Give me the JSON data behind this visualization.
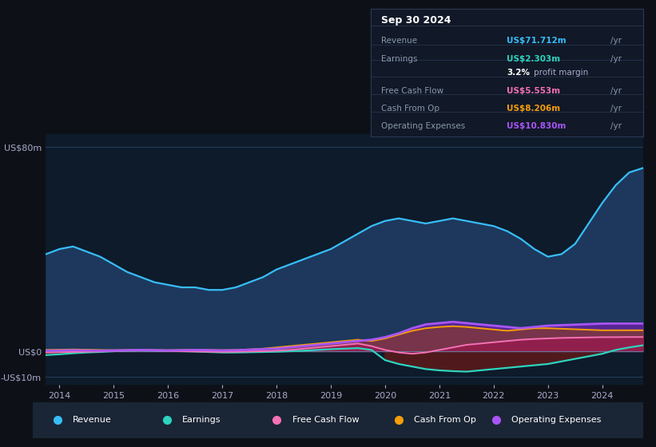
{
  "bg_color": "#0d1117",
  "plot_bg_color": "#0d1b2a",
  "title_date": "Sep 30 2024",
  "years": [
    2013.75,
    2014.0,
    2014.25,
    2014.5,
    2014.75,
    2015.0,
    2015.25,
    2015.5,
    2015.75,
    2016.0,
    2016.25,
    2016.5,
    2016.75,
    2017.0,
    2017.25,
    2017.5,
    2017.75,
    2018.0,
    2018.25,
    2018.5,
    2018.75,
    2019.0,
    2019.25,
    2019.5,
    2019.75,
    2020.0,
    2020.25,
    2020.5,
    2020.75,
    2021.0,
    2021.25,
    2021.5,
    2021.75,
    2022.0,
    2022.25,
    2022.5,
    2022.75,
    2023.0,
    2023.25,
    2023.5,
    2023.75,
    2024.0,
    2024.25,
    2024.5,
    2024.75
  ],
  "revenue": [
    38,
    40,
    41,
    39,
    37,
    34,
    31,
    29,
    27,
    26,
    25,
    25,
    24,
    24,
    25,
    27,
    29,
    32,
    34,
    36,
    38,
    40,
    43,
    46,
    49,
    51,
    52,
    51,
    50,
    51,
    52,
    51,
    50,
    49,
    47,
    44,
    40,
    37,
    38,
    42,
    50,
    58,
    65,
    70,
    71.712
  ],
  "earnings": [
    -1.5,
    -1.2,
    -0.8,
    -0.5,
    -0.3,
    0.0,
    0.2,
    0.3,
    0.2,
    0.1,
    0.0,
    -0.1,
    -0.3,
    -0.5,
    -0.5,
    -0.4,
    -0.3,
    -0.2,
    0.0,
    0.2,
    0.5,
    0.8,
    1.0,
    1.2,
    0.5,
    -3.5,
    -5.0,
    -6.0,
    -7.0,
    -7.5,
    -7.8,
    -8.0,
    -7.5,
    -7.0,
    -6.5,
    -6.0,
    -5.5,
    -5.0,
    -4.0,
    -3.0,
    -2.0,
    -1.0,
    0.5,
    1.5,
    2.303
  ],
  "free_cash_flow": [
    -0.5,
    -0.4,
    -0.3,
    -0.2,
    -0.1,
    0.1,
    0.2,
    0.3,
    0.2,
    0.1,
    0.0,
    -0.1,
    -0.2,
    -0.3,
    -0.2,
    -0.1,
    0.0,
    0.2,
    0.5,
    1.0,
    1.5,
    2.0,
    2.5,
    3.0,
    2.0,
    0.5,
    -0.5,
    -1.0,
    -0.5,
    0.5,
    1.5,
    2.5,
    3.0,
    3.5,
    4.0,
    4.5,
    4.8,
    5.0,
    5.2,
    5.3,
    5.4,
    5.5,
    5.5,
    5.553,
    5.553
  ],
  "cash_from_op": [
    0.5,
    0.6,
    0.7,
    0.6,
    0.5,
    0.4,
    0.5,
    0.6,
    0.5,
    0.4,
    0.5,
    0.6,
    0.5,
    0.4,
    0.5,
    0.7,
    1.0,
    1.5,
    2.0,
    2.5,
    3.0,
    3.5,
    4.0,
    4.5,
    4.0,
    5.0,
    6.5,
    8.0,
    9.0,
    9.5,
    9.8,
    9.5,
    9.0,
    8.5,
    8.0,
    8.5,
    9.0,
    9.0,
    8.8,
    8.6,
    8.4,
    8.2,
    8.2,
    8.206,
    8.206
  ],
  "operating_expenses": [
    0.2,
    0.3,
    0.4,
    0.3,
    0.2,
    0.3,
    0.4,
    0.5,
    0.4,
    0.3,
    0.4,
    0.5,
    0.4,
    0.3,
    0.4,
    0.6,
    0.8,
    1.0,
    1.5,
    2.0,
    2.5,
    3.0,
    3.5,
    4.0,
    4.5,
    5.5,
    7.0,
    9.0,
    10.5,
    11.0,
    11.5,
    11.0,
    10.5,
    10.0,
    9.5,
    9.0,
    9.5,
    10.0,
    10.2,
    10.4,
    10.6,
    10.8,
    10.83,
    10.83,
    10.83
  ],
  "ylim": [
    -13,
    85
  ],
  "yticks": [
    -10,
    0,
    80
  ],
  "ytick_labels": [
    "-US$10m",
    "US$0",
    "US$80m"
  ],
  "xtick_years": [
    2014,
    2015,
    2016,
    2017,
    2018,
    2019,
    2020,
    2021,
    2022,
    2023,
    2024
  ],
  "revenue_color": "#38bdf8",
  "earnings_color": "#2dd4bf",
  "fcf_color": "#f472b6",
  "cashop_color": "#f59e0b",
  "opex_color": "#a855f7",
  "revenue_fill": "#1e3a5f",
  "earnings_fill_neg": "#5c1a1a",
  "earnings_fill_pos": "#1a5c5c",
  "opex_fill": "#6b21a8",
  "fcf_fill": "#9d174d",
  "cashop_fill": "#92400e",
  "table_rows": [
    {
      "label": "Revenue",
      "value": "US$71.712m",
      "color": "#38bdf8"
    },
    {
      "label": "Earnings",
      "value": "US$2.303m",
      "color": "#2dd4bf"
    },
    {
      "label": "",
      "value": "3.2% profit margin",
      "color": "white",
      "special": true
    },
    {
      "label": "Free Cash Flow",
      "value": "US$5.553m",
      "color": "#f472b6"
    },
    {
      "label": "Cash From Op",
      "value": "US$8.206m",
      "color": "#f59e0b"
    },
    {
      "label": "Operating Expenses",
      "value": "US$10.830m",
      "color": "#a855f7"
    }
  ],
  "legend_items": [
    {
      "label": "Revenue",
      "color": "#38bdf8"
    },
    {
      "label": "Earnings",
      "color": "#2dd4bf"
    },
    {
      "label": "Free Cash Flow",
      "color": "#f472b6"
    },
    {
      "label": "Cash From Op",
      "color": "#f59e0b"
    },
    {
      "label": "Operating Expenses",
      "color": "#a855f7"
    }
  ]
}
